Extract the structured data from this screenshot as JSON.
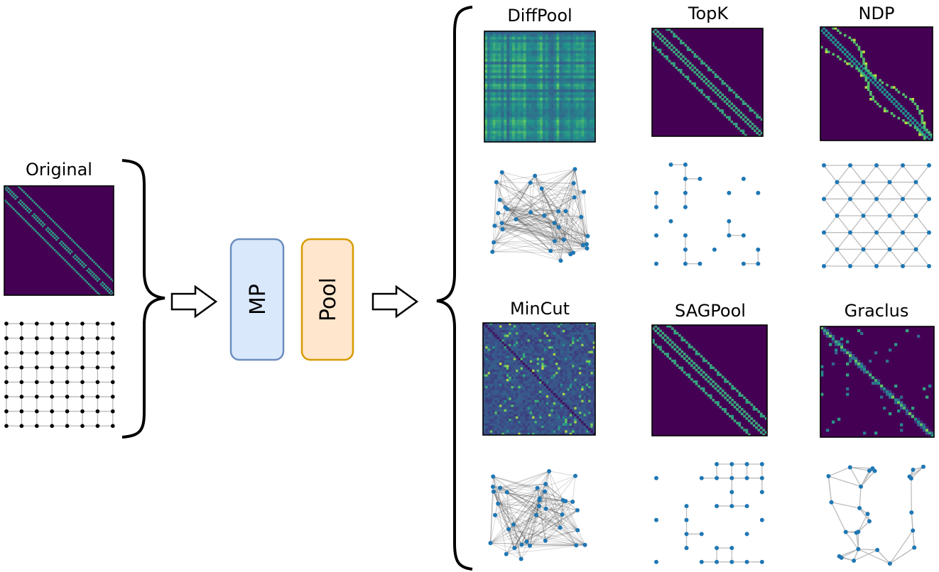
{
  "colors": {
    "viridis_dark": "#440154",
    "viridis_mid": "#21918c",
    "viridis_light": "#5ec962",
    "viridis_bright": "#fde725",
    "node_blue": "#1f77b4",
    "edge_gray": "#bdbdbd",
    "edge_dark": "#222222",
    "mp_fill": "#dae8fc",
    "mp_stroke": "#6c8ebf",
    "pool_fill": "#ffe6cc",
    "pool_stroke": "#d79b00"
  },
  "original": {
    "label": "Original"
  },
  "blocks": {
    "mp_label": "MP",
    "pool_label": "Pool"
  },
  "methods": [
    {
      "key": "diffpool",
      "label": "DiffPool",
      "matrix_style": "dense",
      "graph_style": "dense"
    },
    {
      "key": "topk",
      "label": "TopK",
      "matrix_style": "banded_sparse",
      "graph_style": "grid_fragments"
    },
    {
      "key": "ndp",
      "label": "NDP",
      "matrix_style": "banded_rings",
      "graph_style": "triangular_grid"
    },
    {
      "key": "mincut",
      "label": "MinCut",
      "matrix_style": "noisy_dense",
      "graph_style": "dense"
    },
    {
      "key": "sagpool",
      "label": "SAGPool",
      "matrix_style": "banded_sparse",
      "graph_style": "grid_fragments"
    },
    {
      "key": "graclus",
      "label": "Graclus",
      "matrix_style": "diag_scatter",
      "graph_style": "irregular_mesh"
    }
  ]
}
